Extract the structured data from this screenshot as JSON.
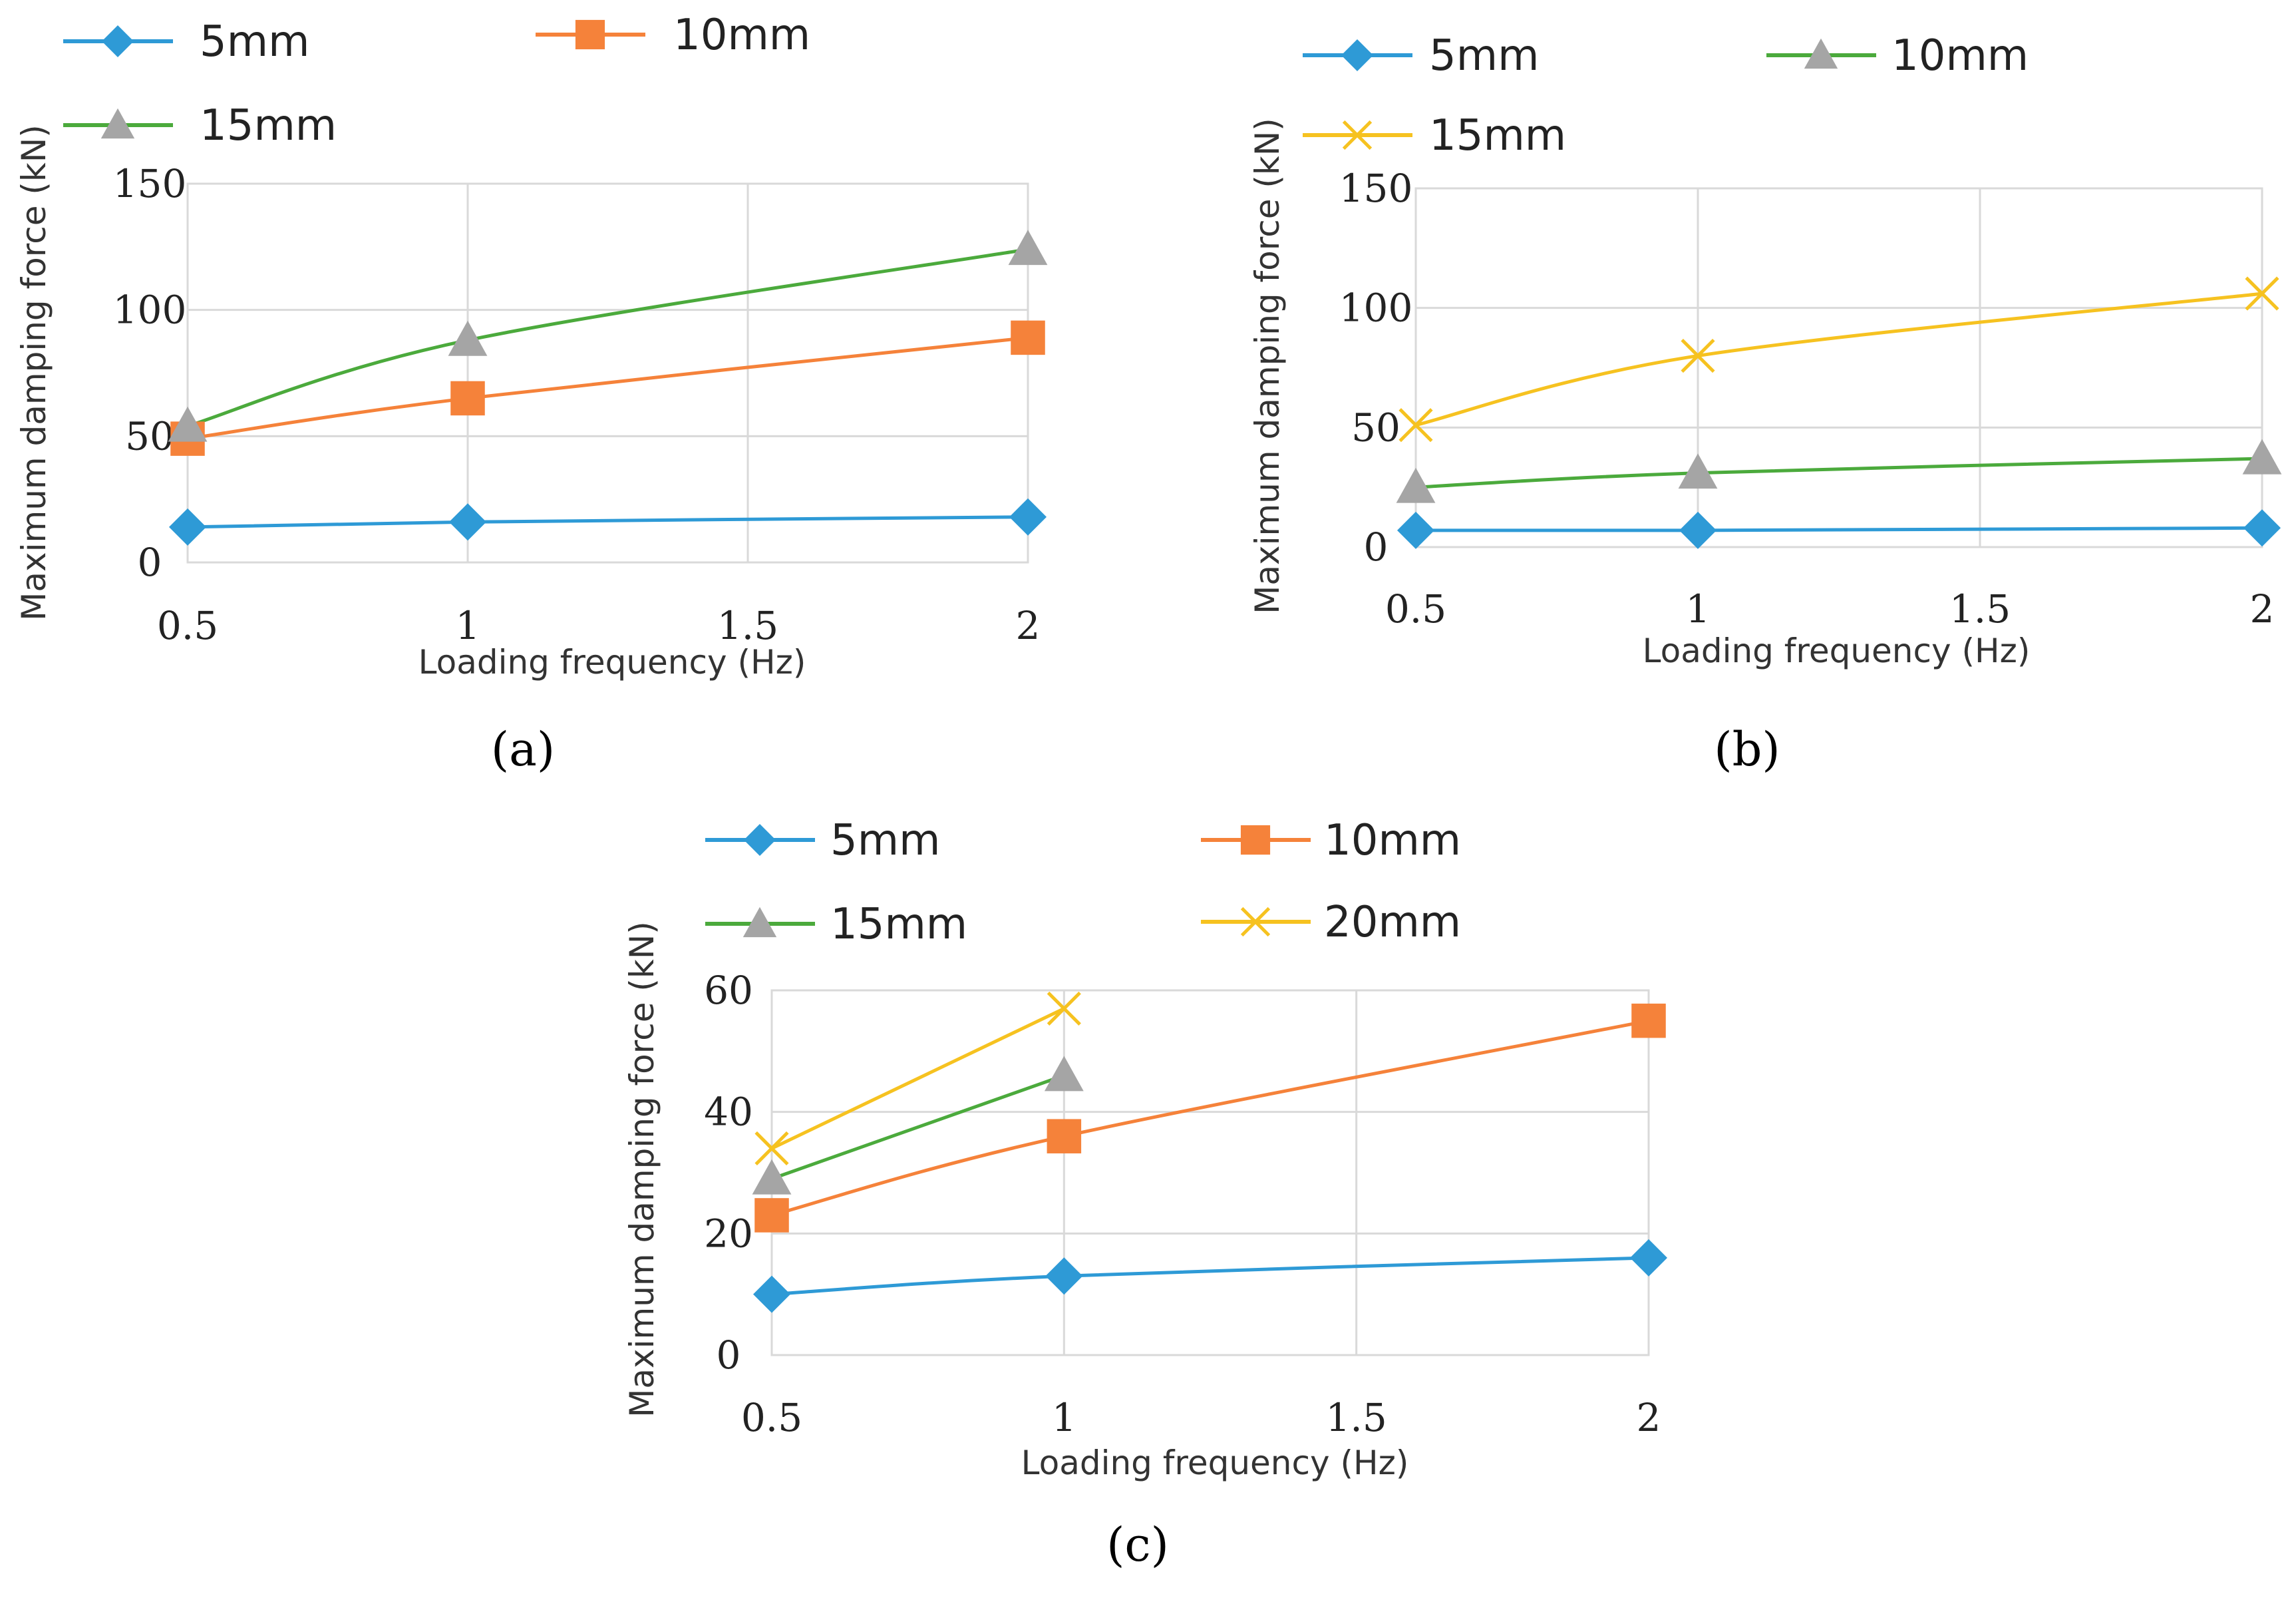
{
  "chart_data": [
    {
      "id": "a",
      "type": "line",
      "caption": "(a)",
      "xlabel": "Loading frequency (Hz)",
      "ylabel": "Maximum damping force (kN)",
      "xlim": [
        0.5,
        2
      ],
      "ylim": [
        0,
        150
      ],
      "xticks": [
        {
          "v": 0.5,
          "label": "0.5"
        },
        {
          "v": 1,
          "label": "1"
        },
        {
          "v": 1.5,
          "label": "1.5"
        },
        {
          "v": 2,
          "label": "2"
        }
      ],
      "yticks": [
        {
          "v": 0,
          "label": "0"
        },
        {
          "v": 50,
          "label": "50"
        },
        {
          "v": 100,
          "label": "100"
        },
        {
          "v": 150,
          "label": "150"
        }
      ],
      "grid": true,
      "series": [
        {
          "name": "5mm",
          "line_color": "#2E9AD6",
          "marker": "diamond",
          "marker_color": "#2E9AD6",
          "points": [
            {
              "x": 0.5,
              "y": 14
            },
            {
              "x": 1,
              "y": 16
            },
            {
              "x": 2,
              "y": 18
            }
          ]
        },
        {
          "name": "10mm",
          "line_color": "#F5823A",
          "marker": "square",
          "marker_color": "#F5823A",
          "points": [
            {
              "x": 0.5,
              "y": 49
            },
            {
              "x": 1,
              "y": 65
            },
            {
              "x": 2,
              "y": 89
            }
          ]
        },
        {
          "name": "15mm",
          "line_color": "#4BAA3C",
          "marker": "triangle",
          "marker_color": "#A5A5A5",
          "points": [
            {
              "x": 0.5,
              "y": 54
            },
            {
              "x": 1,
              "y": 88
            },
            {
              "x": 2,
              "y": 124
            }
          ]
        }
      ]
    },
    {
      "id": "b",
      "type": "line",
      "caption": "(b)",
      "xlabel": "Loading frequency (Hz)",
      "ylabel": "Maximum damping force (kN)",
      "xlim": [
        0.5,
        2
      ],
      "ylim": [
        0,
        150
      ],
      "xticks": [
        {
          "v": 0.5,
          "label": "0.5"
        },
        {
          "v": 1,
          "label": "1"
        },
        {
          "v": 1.5,
          "label": "1.5"
        },
        {
          "v": 2,
          "label": "2"
        }
      ],
      "yticks": [
        {
          "v": 0,
          "label": "0"
        },
        {
          "v": 50,
          "label": "50"
        },
        {
          "v": 100,
          "label": "100"
        },
        {
          "v": 150,
          "label": "150"
        }
      ],
      "grid": true,
      "series": [
        {
          "name": "5mm",
          "line_color": "#2E9AD6",
          "marker": "diamond",
          "marker_color": "#2E9AD6",
          "points": [
            {
              "x": 0.5,
              "y": 7
            },
            {
              "x": 1,
              "y": 7
            },
            {
              "x": 2,
              "y": 8
            }
          ]
        },
        {
          "name": "10mm",
          "line_color": "#4BAA3C",
          "marker": "triangle",
          "marker_color": "#A5A5A5",
          "points": [
            {
              "x": 0.5,
              "y": 25
            },
            {
              "x": 1,
              "y": 31
            },
            {
              "x": 2,
              "y": 37
            }
          ]
        },
        {
          "name": "15mm",
          "line_color": "#F6C220",
          "marker": "x",
          "marker_color": "#F6C220",
          "points": [
            {
              "x": 0.5,
              "y": 51
            },
            {
              "x": 1,
              "y": 80
            },
            {
              "x": 2,
              "y": 106
            }
          ]
        }
      ]
    },
    {
      "id": "c",
      "type": "line",
      "caption": "(c)",
      "xlabel": "Loading frequency (Hz)",
      "ylabel": "Maximum damping force (kN)",
      "xlim": [
        0.5,
        2
      ],
      "ylim": [
        0,
        60
      ],
      "xticks": [
        {
          "v": 0.5,
          "label": "0.5"
        },
        {
          "v": 1,
          "label": "1"
        },
        {
          "v": 1.5,
          "label": "1.5"
        },
        {
          "v": 2,
          "label": "2"
        }
      ],
      "yticks": [
        {
          "v": 0,
          "label": "0"
        },
        {
          "v": 20,
          "label": "20"
        },
        {
          "v": 40,
          "label": "40"
        },
        {
          "v": 60,
          "label": "60"
        }
      ],
      "grid": true,
      "series": [
        {
          "name": "5mm",
          "line_color": "#2E9AD6",
          "marker": "diamond",
          "marker_color": "#2E9AD6",
          "points": [
            {
              "x": 0.5,
              "y": 10
            },
            {
              "x": 1,
              "y": 13
            },
            {
              "x": 2,
              "y": 16
            }
          ]
        },
        {
          "name": "10mm",
          "line_color": "#F5823A",
          "marker": "square",
          "marker_color": "#F5823A",
          "points": [
            {
              "x": 0.5,
              "y": 23
            },
            {
              "x": 1,
              "y": 36
            },
            {
              "x": 2,
              "y": 55
            }
          ]
        },
        {
          "name": "15mm",
          "line_color": "#4BAA3C",
          "marker": "triangle",
          "marker_color": "#A5A5A5",
          "points": [
            {
              "x": 0.5,
              "y": 29
            },
            {
              "x": 1,
              "y": 46
            }
          ]
        },
        {
          "name": "20mm",
          "line_color": "#F6C220",
          "marker": "x",
          "marker_color": "#F6C220",
          "points": [
            {
              "x": 0.5,
              "y": 34
            },
            {
              "x": 1,
              "y": 57
            }
          ]
        }
      ]
    }
  ]
}
